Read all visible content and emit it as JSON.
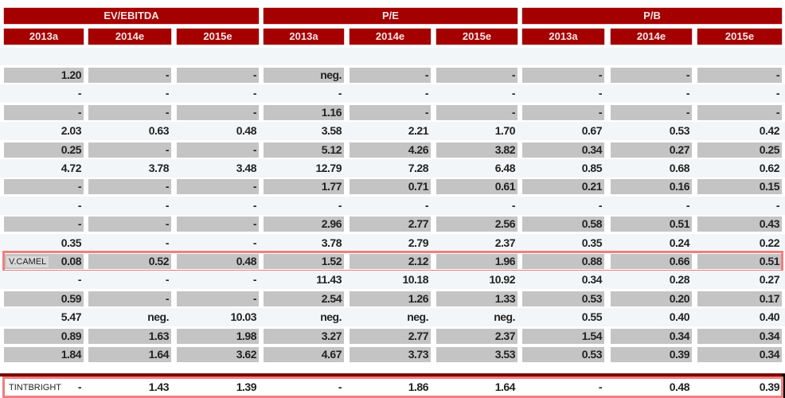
{
  "groups": [
    "EV/EBITDA",
    "P/E",
    "P/B"
  ],
  "years": [
    "2013a",
    "2014e",
    "2015e"
  ],
  "rows": [
    {
      "label": "",
      "values": [
        "1.20",
        "-",
        "-",
        "neg.",
        "-",
        "-",
        "-",
        "-",
        "-"
      ]
    },
    {
      "label": "",
      "values": [
        "-",
        "-",
        "-",
        "-",
        "-",
        "-",
        "-",
        "-",
        "-"
      ]
    },
    {
      "label": "",
      "values": [
        "-",
        "-",
        "-",
        "1.16",
        "-",
        "-",
        "-",
        "-",
        "-"
      ]
    },
    {
      "label": "",
      "values": [
        "2.03",
        "0.63",
        "0.48",
        "3.58",
        "2.21",
        "1.70",
        "0.67",
        "0.53",
        "0.42"
      ]
    },
    {
      "label": "",
      "values": [
        "0.25",
        "-",
        "-",
        "5.12",
        "4.26",
        "3.82",
        "0.34",
        "0.27",
        "0.25"
      ]
    },
    {
      "label": "",
      "values": [
        "4.72",
        "3.78",
        "3.48",
        "12.79",
        "7.28",
        "6.48",
        "0.85",
        "0.68",
        "0.62"
      ]
    },
    {
      "label": "",
      "values": [
        "-",
        "-",
        "-",
        "1.77",
        "0.71",
        "0.61",
        "0.21",
        "0.16",
        "0.15"
      ]
    },
    {
      "label": "",
      "values": [
        "-",
        "-",
        "-",
        "-",
        "-",
        "-",
        "-",
        "-",
        "-"
      ]
    },
    {
      "label": "",
      "values": [
        "-",
        "-",
        "-",
        "2.96",
        "2.77",
        "2.56",
        "0.58",
        "0.51",
        "0.43"
      ]
    },
    {
      "label": "",
      "values": [
        "0.35",
        "-",
        "-",
        "3.78",
        "2.79",
        "2.37",
        "0.35",
        "0.24",
        "0.22"
      ]
    },
    {
      "label": "V.CAMEL",
      "values": [
        "0.08",
        "0.52",
        "0.48",
        "1.52",
        "2.12",
        "1.96",
        "0.88",
        "0.66",
        "0.51"
      ]
    },
    {
      "label": "",
      "values": [
        "-",
        "-",
        "-",
        "11.43",
        "10.18",
        "10.92",
        "0.34",
        "0.28",
        "0.27"
      ]
    },
    {
      "label": "",
      "values": [
        "0.59",
        "-",
        "-",
        "2.54",
        "1.26",
        "1.33",
        "0.53",
        "0.20",
        "0.17"
      ]
    },
    {
      "label": "",
      "values": [
        "5.47",
        "neg.",
        "10.03",
        "neg.",
        "neg.",
        "neg.",
        "0.55",
        "0.40",
        "0.40"
      ]
    },
    {
      "label": "",
      "values": [
        "0.89",
        "1.63",
        "1.98",
        "3.27",
        "2.77",
        "2.37",
        "1.54",
        "0.34",
        "0.34"
      ]
    },
    {
      "label": "",
      "values": [
        "1.84",
        "1.64",
        "3.62",
        "4.67",
        "3.73",
        "3.53",
        "0.53",
        "0.39",
        "0.34"
      ]
    },
    {
      "label": "TINTBRIGHT",
      "values": [
        "-",
        "1.43",
        "1.39",
        "-",
        "1.86",
        "1.64",
        "-",
        "0.48",
        "0.39"
      ]
    }
  ],
  "colors": {
    "header": "#a50000",
    "shade": "#c4c4c4",
    "highlight": "#f07f7f"
  }
}
